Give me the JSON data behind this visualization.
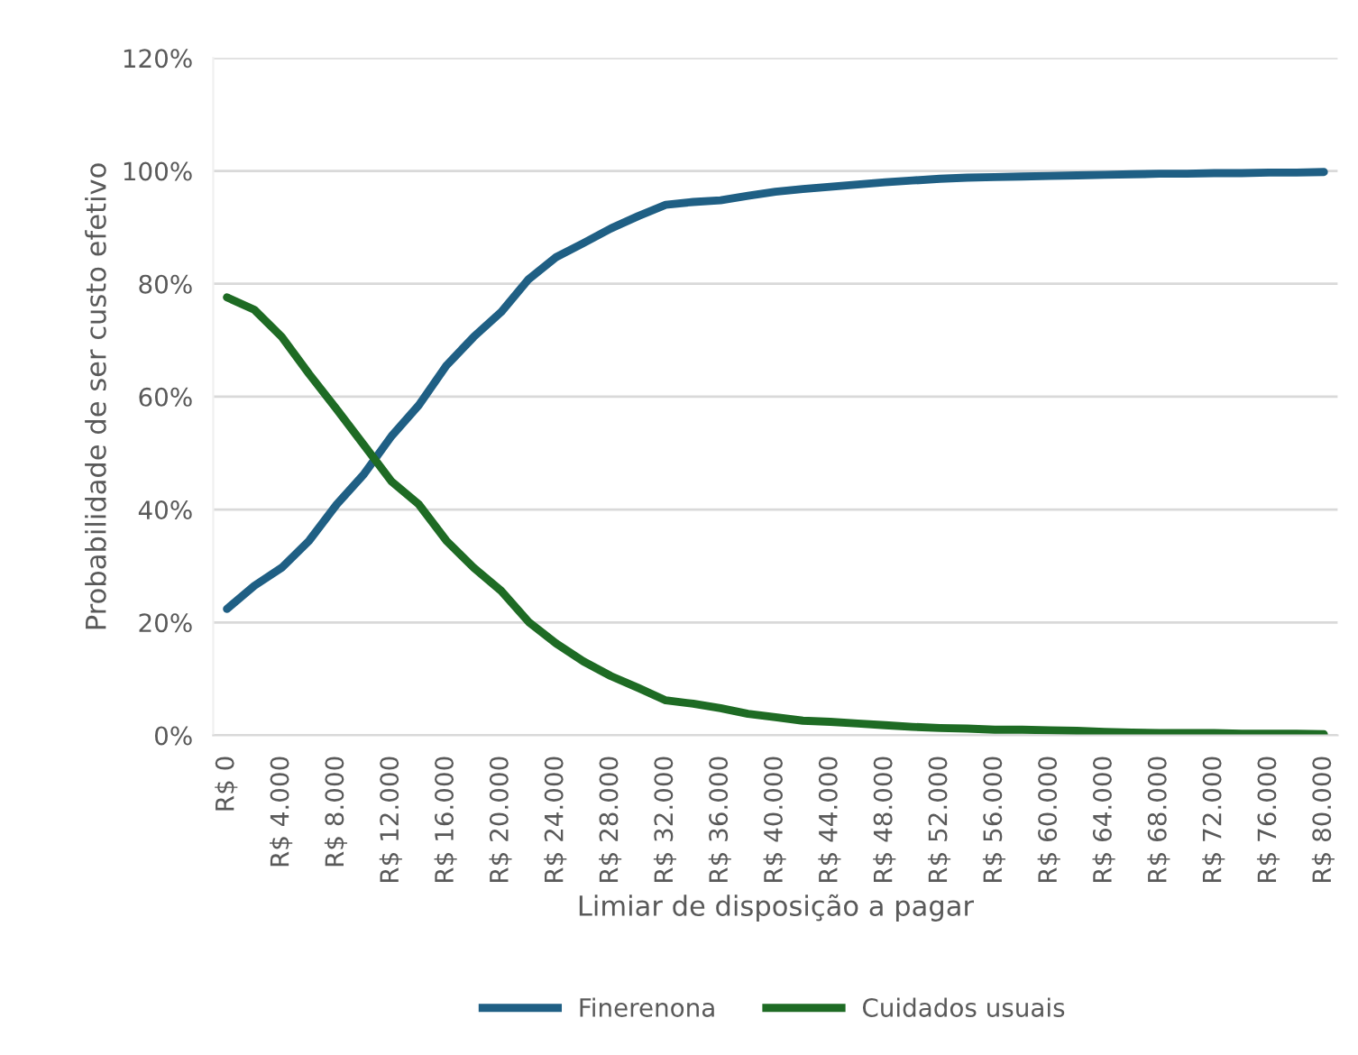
{
  "chart_data": {
    "type": "line",
    "xlabel": "Limiar de disposição a pagar",
    "ylabel": "Probabilidade de ser custo efetivo",
    "categories": [
      "R$ 0",
      null,
      "R$ 4.000",
      null,
      "R$ 8.000",
      null,
      "R$ 12.000",
      null,
      "R$ 16.000",
      null,
      "R$ 20.000",
      null,
      "R$ 24.000",
      null,
      "R$ 28.000",
      null,
      "R$ 32.000",
      null,
      "R$ 36.000",
      null,
      "R$ 40.000",
      null,
      "R$ 44.000",
      null,
      "R$ 48.000",
      null,
      "R$ 52.000",
      null,
      "R$ 56.000",
      null,
      "R$ 60.000",
      null,
      "R$ 64.000",
      null,
      "R$ 68.000",
      null,
      "R$ 72.000",
      null,
      "R$ 76.000",
      null,
      "R$ 80.000"
    ],
    "series": [
      {
        "name": "Finerenona",
        "color": "#1f5f84",
        "values": [
          22.4,
          26.5,
          29.7,
          34.5,
          40.9,
          46.3,
          53,
          58.5,
          65.5,
          70.6,
          75,
          80.8,
          84.7,
          87.2,
          89.8,
          92,
          94,
          94.5,
          94.8,
          95.6,
          96.3,
          96.8,
          97.2,
          97.6,
          98.0,
          98.3,
          98.6,
          98.8,
          98.9,
          99.0,
          99.1,
          99.2,
          99.3,
          99.4,
          99.5,
          99.5,
          99.6,
          99.6,
          99.7,
          99.7,
          99.8
        ]
      },
      {
        "name": "Cuidados usuais",
        "color": "#1e6b24",
        "values": [
          77.6,
          75.4,
          70.6,
          64,
          57.8,
          51.4,
          45,
          40.9,
          34.5,
          29.7,
          25.6,
          20.1,
          16.3,
          13.1,
          10.5,
          8.4,
          6.2,
          5.6,
          4.8,
          3.8,
          3.2,
          2.6,
          2.4,
          2.1,
          1.8,
          1.5,
          1.3,
          1.2,
          1.0,
          1.0,
          0.9,
          0.8,
          0.6,
          0.5,
          0.4,
          0.4,
          0.4,
          0.3,
          0.3,
          0.3,
          0.2
        ]
      }
    ],
    "ylim": [
      0,
      120
    ],
    "yticks": [
      {
        "value": 0,
        "label": "0%"
      },
      {
        "value": 20,
        "label": "20%"
      },
      {
        "value": 40,
        "label": "40%"
      },
      {
        "value": 60,
        "label": "60%"
      },
      {
        "value": 80,
        "label": "80%"
      },
      {
        "value": 100,
        "label": "100%"
      },
      {
        "value": 120,
        "label": "120%"
      }
    ],
    "grid": "y",
    "legend": "bottom",
    "marker": "none",
    "line_style": "solid"
  }
}
